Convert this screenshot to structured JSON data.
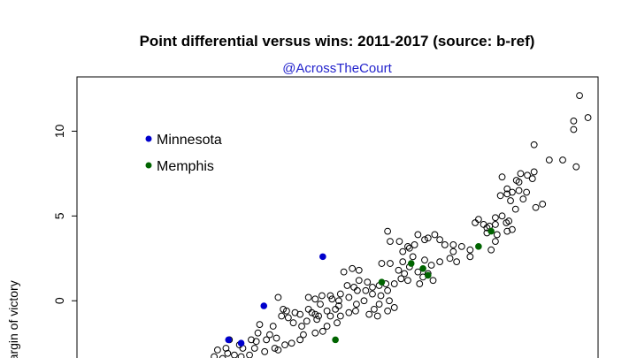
{
  "chart_data": {
    "type": "scatter",
    "title": "Point differential versus wins: 2011-2017 (source: b-ref)",
    "subtitle": "@AcrossTheCourt",
    "xlabel": "",
    "ylabel": "Margin of victory",
    "xlim": [
      11.3,
      73.2
    ],
    "ylim": [
      -4.0,
      13.2
    ],
    "yticks": [
      0,
      5,
      10
    ],
    "grid": false,
    "legend": {
      "placement": "top-left",
      "entries": [
        {
          "label": "Minnesota",
          "color": "#0000cc",
          "filled": true
        },
        {
          "label": "Memphis",
          "color": "#006400",
          "filled": true
        }
      ]
    },
    "series": [
      {
        "name": "",
        "color": "#000000",
        "filled": false,
        "points": [
          [
            71.0,
            12.1
          ],
          [
            72.0,
            10.8
          ],
          [
            70.3,
            10.6
          ],
          [
            70.3,
            10.1
          ],
          [
            65.6,
            9.2
          ],
          [
            67.4,
            8.3
          ],
          [
            69.0,
            8.3
          ],
          [
            70.6,
            7.9
          ],
          [
            64.0,
            7.5
          ],
          [
            64.8,
            7.4
          ],
          [
            63.5,
            7.1
          ],
          [
            63.8,
            7.0
          ],
          [
            65.6,
            7.6
          ],
          [
            65.4,
            7.2
          ],
          [
            61.8,
            7.3
          ],
          [
            62.4,
            6.6
          ],
          [
            63.0,
            6.4
          ],
          [
            63.8,
            6.5
          ],
          [
            64.7,
            6.4
          ],
          [
            64.3,
            6.0
          ],
          [
            62.4,
            6.3
          ],
          [
            61.6,
            6.2
          ],
          [
            65.8,
            5.5
          ],
          [
            66.6,
            5.7
          ],
          [
            62.8,
            5.9
          ],
          [
            63.4,
            5.4
          ],
          [
            61.8,
            5.0
          ],
          [
            62.6,
            4.7
          ],
          [
            61.0,
            4.9
          ],
          [
            59.0,
            4.8
          ],
          [
            58.6,
            4.6
          ],
          [
            59.6,
            4.5
          ],
          [
            60.0,
            4.3
          ],
          [
            60.3,
            4.4
          ],
          [
            61.0,
            4.5
          ],
          [
            62.3,
            4.6
          ],
          [
            62.4,
            4.1
          ],
          [
            63.0,
            4.2
          ],
          [
            60.0,
            4.0
          ],
          [
            61.2,
            3.9
          ],
          [
            61.0,
            3.5
          ],
          [
            60.5,
            3.0
          ],
          [
            58.0,
            3.0
          ],
          [
            57.0,
            3.2
          ],
          [
            56.0,
            3.3
          ],
          [
            56.0,
            2.9
          ],
          [
            55.0,
            3.3
          ],
          [
            54.4,
            3.6
          ],
          [
            53.8,
            3.9
          ],
          [
            53.0,
            3.7
          ],
          [
            52.6,
            3.6
          ],
          [
            51.8,
            3.9
          ],
          [
            51.4,
            3.3
          ],
          [
            50.8,
            3.1
          ],
          [
            50.6,
            3.2
          ],
          [
            49.6,
            3.5
          ],
          [
            48.2,
            4.1
          ],
          [
            48.5,
            3.5
          ],
          [
            50.0,
            2.9
          ],
          [
            51.2,
            2.6
          ],
          [
            52.6,
            2.4
          ],
          [
            53.4,
            2.1
          ],
          [
            54.4,
            2.3
          ],
          [
            55.6,
            2.5
          ],
          [
            56.4,
            2.3
          ],
          [
            58.0,
            2.6
          ],
          [
            50.0,
            2.3
          ],
          [
            50.8,
            2.0
          ],
          [
            48.5,
            2.2
          ],
          [
            47.5,
            2.2
          ],
          [
            49.5,
            1.8
          ],
          [
            50.2,
            1.6
          ],
          [
            51.8,
            1.7
          ],
          [
            52.4,
            1.4
          ],
          [
            53.0,
            1.6
          ],
          [
            53.6,
            1.2
          ],
          [
            52.0,
            1.0
          ],
          [
            50.6,
            1.2
          ],
          [
            49.8,
            1.3
          ],
          [
            49.0,
            1.0
          ],
          [
            48.0,
            1.0
          ],
          [
            47.2,
            0.9
          ],
          [
            46.4,
            0.8
          ],
          [
            45.8,
            1.1
          ],
          [
            44.8,
            1.8
          ],
          [
            44.0,
            1.9
          ],
          [
            44.8,
            1.2
          ],
          [
            45.6,
            0.6
          ],
          [
            44.6,
            0.6
          ],
          [
            44.2,
            0.8
          ],
          [
            43.4,
            0.9
          ],
          [
            42.6,
            0.4
          ],
          [
            41.4,
            0.3
          ],
          [
            40.4,
            0.3
          ],
          [
            39.6,
            0.1
          ],
          [
            40.2,
            -0.2
          ],
          [
            41.6,
            0.1
          ],
          [
            42.4,
            0.0
          ],
          [
            43.6,
            0.2
          ],
          [
            44.5,
            -0.2
          ],
          [
            45.4,
            0.0
          ],
          [
            46.4,
            0.4
          ],
          [
            47.4,
            0.3
          ],
          [
            48.2,
            0.6
          ],
          [
            48.4,
            0.0
          ],
          [
            47.2,
            -0.2
          ],
          [
            46.6,
            -0.5
          ],
          [
            46.0,
            -0.8
          ],
          [
            47.0,
            -0.9
          ],
          [
            48.2,
            -0.6
          ],
          [
            49.0,
            -0.4
          ],
          [
            44.4,
            -0.6
          ],
          [
            43.6,
            -0.7
          ],
          [
            42.4,
            -0.3
          ],
          [
            42.0,
            -0.5
          ],
          [
            41.0,
            -0.6
          ],
          [
            41.4,
            -0.9
          ],
          [
            42.6,
            -0.9
          ],
          [
            40.0,
            -0.9
          ],
          [
            39.6,
            -0.8
          ],
          [
            38.8,
            -0.5
          ],
          [
            37.8,
            -0.8
          ],
          [
            37.2,
            -0.7
          ],
          [
            36.2,
            -0.6
          ],
          [
            35.8,
            -0.5
          ],
          [
            35.6,
            -0.9
          ],
          [
            36.4,
            -1.0
          ],
          [
            37.0,
            -1.3
          ],
          [
            38.0,
            -1.5
          ],
          [
            38.6,
            -1.2
          ],
          [
            39.8,
            -1.1
          ],
          [
            41.0,
            -1.5
          ],
          [
            42.2,
            -1.3
          ],
          [
            40.5,
            -1.8
          ],
          [
            39.6,
            -1.9
          ],
          [
            38.2,
            -2.0
          ],
          [
            37.8,
            -2.3
          ],
          [
            36.8,
            -2.5
          ],
          [
            36.0,
            -2.6
          ],
          [
            35.0,
            -2.2
          ],
          [
            34.2,
            -2.0
          ],
          [
            33.8,
            -2.3
          ],
          [
            32.6,
            -2.4
          ],
          [
            32.0,
            -2.3
          ],
          [
            33.0,
            -1.4
          ],
          [
            34.6,
            -1.5
          ],
          [
            32.8,
            -1.9
          ],
          [
            38.8,
            0.2
          ],
          [
            39.2,
            -0.7
          ],
          [
            35.2,
            0.2
          ],
          [
            43.0,
            1.7
          ],
          [
            29.4,
            -2.3
          ],
          [
            30.6,
            -2.6
          ],
          [
            31.0,
            -2.8
          ],
          [
            29.0,
            -2.8
          ],
          [
            28.0,
            -2.9
          ],
          [
            27.6,
            -3.3
          ],
          [
            28.6,
            -3.4
          ],
          [
            29.2,
            -3.1
          ],
          [
            30.0,
            -3.2
          ],
          [
            30.8,
            -3.3
          ],
          [
            31.8,
            -3.2
          ],
          [
            32.4,
            -2.8
          ],
          [
            33.6,
            -3.0
          ],
          [
            34.8,
            -2.8
          ],
          [
            35.2,
            -2.9
          ],
          [
            27.0,
            -3.6
          ],
          [
            26.0,
            -3.8
          ],
          [
            25.4,
            -3.9
          ],
          [
            24.8,
            -3.8
          ]
        ]
      },
      {
        "name": "Minnesota",
        "color": "#0000cc",
        "filled": true,
        "points": [
          [
            40.5,
            2.6
          ],
          [
            33.5,
            -0.3
          ],
          [
            29.3,
            -2.3
          ],
          [
            30.8,
            -2.5
          ],
          [
            27.8,
            -3.7
          ]
        ]
      },
      {
        "name": "Memphis",
        "color": "#006400",
        "filled": true,
        "points": [
          [
            60.5,
            4.1
          ],
          [
            59.0,
            3.2
          ],
          [
            51.0,
            2.2
          ],
          [
            52.4,
            1.9
          ],
          [
            53.0,
            1.5
          ],
          [
            47.5,
            1.1
          ],
          [
            42.0,
            -2.3
          ]
        ]
      }
    ]
  }
}
